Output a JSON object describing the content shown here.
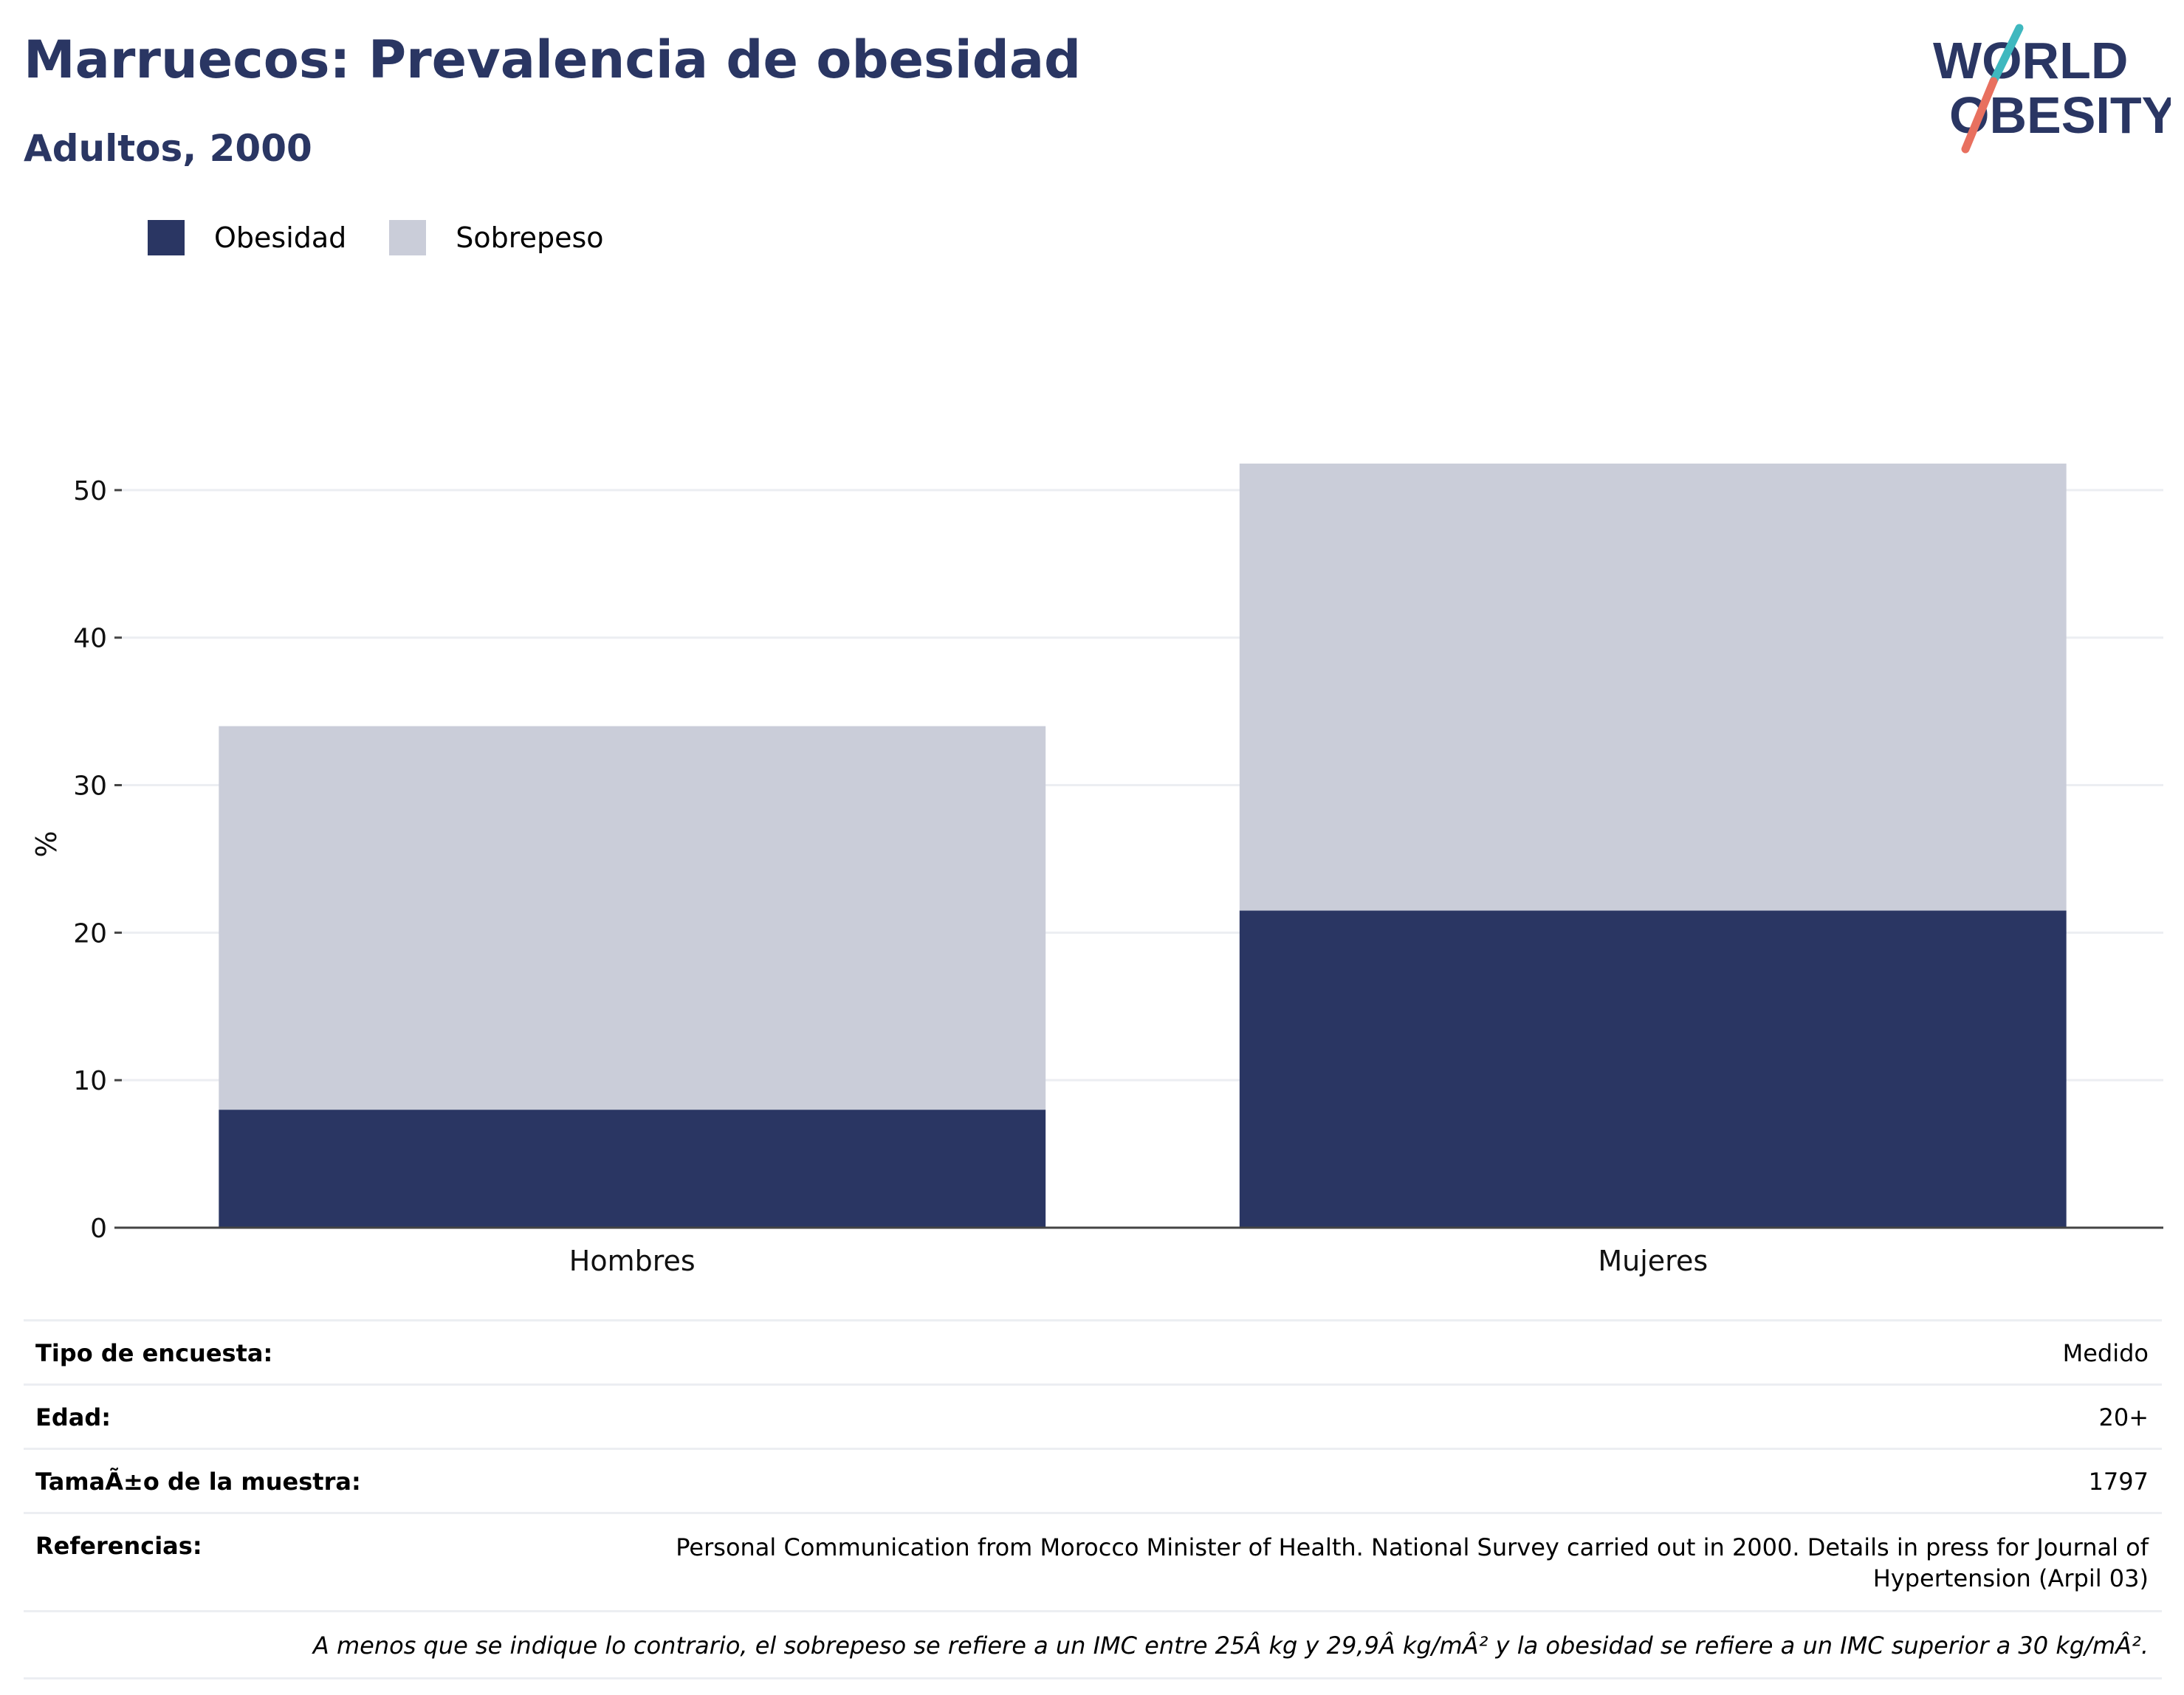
{
  "header": {
    "title": "Marruecos: Prevalencia de obesidad",
    "subtitle": "Adultos, 2000",
    "logo_line1": "WORLD",
    "logo_line2": "OBESITY"
  },
  "colors": {
    "obesidad": "#2a3663",
    "sobrepeso": "#cacdd9",
    "title": "#2a3663"
  },
  "chart_data": {
    "type": "bar",
    "stacked": true,
    "categories": [
      "Hombres",
      "Mujeres"
    ],
    "series": [
      {
        "name": "Obesidad",
        "values": [
          8,
          21.5
        ]
      },
      {
        "name": "Sobrepeso",
        "values": [
          26,
          30.3
        ]
      }
    ],
    "ylabel": "%",
    "xlabel": "",
    "ylim": [
      0,
      55
    ],
    "yticks": [
      0,
      10,
      20,
      30,
      40,
      50
    ],
    "grid": true,
    "legend": "top-left"
  },
  "info": {
    "survey_label": "Tipo de encuesta:",
    "survey_value": "Medido",
    "age_label": "Edad:",
    "age_value": "20+",
    "sample_label": "TamaÃ±o de la muestra:",
    "sample_value": "1797",
    "refs_label": "Referencias:",
    "refs_value": "Personal Communication from Morocco Minister of Health. National Survey carried out in 2000. Details in press for Journal of Hypertension (Arpil 03)",
    "note": "A menos que se indique lo contrario, el sobrepeso se refiere a un IMC entre 25Â kg y 29,9Â kg/mÂ² y la obesidad se refiere a un IMC superior a 30 kg/mÂ²."
  }
}
